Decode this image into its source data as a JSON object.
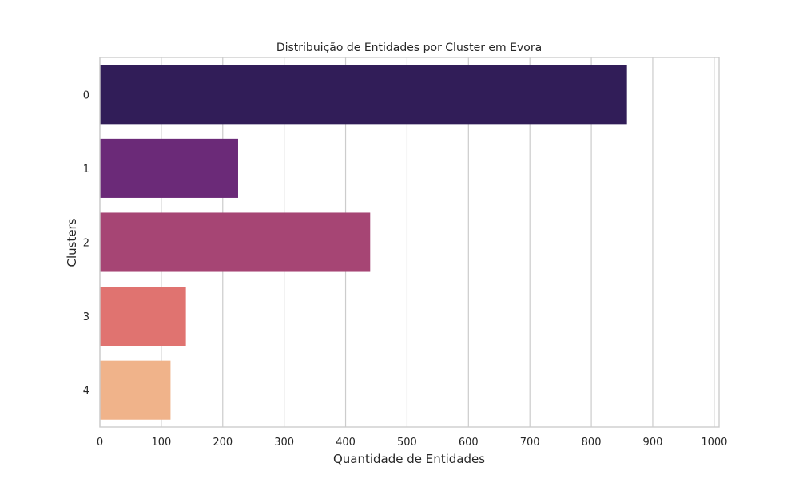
{
  "chart_data": {
    "type": "bar",
    "orientation": "horizontal",
    "title": "Distribuição de Entidades por Cluster em Evora",
    "xlabel": "Quantidade de Entidades",
    "ylabel": "Clusters",
    "categories": [
      "0",
      "1",
      "2",
      "3",
      "4"
    ],
    "values": [
      858,
      225,
      440,
      140,
      115
    ],
    "colors": [
      "#311d58",
      "#6b2a78",
      "#a64574",
      "#e07370",
      "#f0b38a"
    ],
    "xlim": [
      0,
      1008
    ],
    "xticks": [
      0,
      100,
      200,
      300,
      400,
      500,
      600,
      700,
      800,
      900,
      1000
    ],
    "grid": true
  }
}
